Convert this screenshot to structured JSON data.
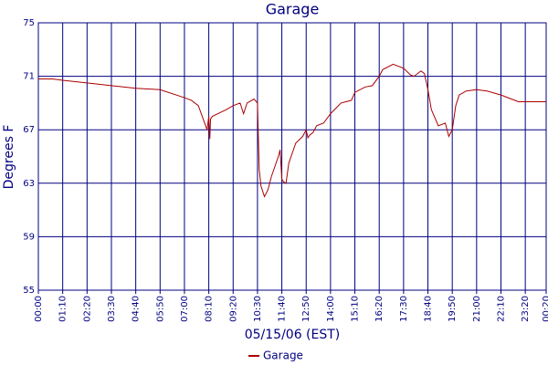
{
  "chart_data": {
    "type": "line",
    "title": "Garage",
    "xlabel": "05/15/06 (EST)",
    "ylabel": "Degrees F",
    "x": [
      0,
      40,
      70,
      140,
      210,
      280,
      350,
      420,
      440,
      460,
      485,
      490,
      493,
      495,
      500,
      540,
      560,
      580,
      590,
      600,
      620,
      630,
      635,
      640,
      650,
      660,
      670,
      690,
      695,
      700,
      705,
      712,
      720,
      740,
      760,
      770,
      775,
      780,
      790,
      800,
      820,
      840,
      870,
      900,
      910,
      940,
      960,
      980,
      990,
      1020,
      1050,
      1070,
      1080,
      1100,
      1110,
      1120,
      1130,
      1150,
      1170,
      1180,
      1190,
      1200,
      1210,
      1230,
      1260,
      1290,
      1330,
      1360,
      1380,
      1400,
      1440,
      1460
    ],
    "series": [
      {
        "name": "Garage",
        "color": "#aa0000",
        "values": [
          70.8,
          70.8,
          70.7,
          70.5,
          70.3,
          70.1,
          70.0,
          69.4,
          69.2,
          68.8,
          67.0,
          68.0,
          66.3,
          67.8,
          68.0,
          68.5,
          68.8,
          69.0,
          68.2,
          69.0,
          69.3,
          69.0,
          64.0,
          62.8,
          62.0,
          62.5,
          63.5,
          65.0,
          65.5,
          63.3,
          63.1,
          63.0,
          64.5,
          66.0,
          66.5,
          67.0,
          66.4,
          66.6,
          66.8,
          67.3,
          67.5,
          68.2,
          69.0,
          69.2,
          69.8,
          70.2,
          70.3,
          71.0,
          71.5,
          71.9,
          71.6,
          71.1,
          71.0,
          71.4,
          71.2,
          70.0,
          68.5,
          67.3,
          67.5,
          66.5,
          67.0,
          68.8,
          69.6,
          69.9,
          70.0,
          69.9,
          69.6,
          69.3,
          69.1,
          69.1,
          69.1,
          69.1
        ]
      }
    ],
    "xlim": [
      0,
      1460
    ],
    "xticks": [
      {
        "value": 0,
        "label": "00:00"
      },
      {
        "value": 70,
        "label": "01:10"
      },
      {
        "value": 140,
        "label": "02:20"
      },
      {
        "value": 210,
        "label": "03:30"
      },
      {
        "value": 280,
        "label": "04:40"
      },
      {
        "value": 350,
        "label": "05:50"
      },
      {
        "value": 420,
        "label": "07:00"
      },
      {
        "value": 490,
        "label": "08:10"
      },
      {
        "value": 560,
        "label": "09:20"
      },
      {
        "value": 630,
        "label": "10:30"
      },
      {
        "value": 700,
        "label": "11:40"
      },
      {
        "value": 770,
        "label": "12:50"
      },
      {
        "value": 840,
        "label": "14:00"
      },
      {
        "value": 910,
        "label": "15:10"
      },
      {
        "value": 980,
        "label": "16:20"
      },
      {
        "value": 1050,
        "label": "17:30"
      },
      {
        "value": 1120,
        "label": "18:40"
      },
      {
        "value": 1190,
        "label": "19:50"
      },
      {
        "value": 1260,
        "label": "21:00"
      },
      {
        "value": 1330,
        "label": "22:10"
      },
      {
        "value": 1400,
        "label": "23:20"
      },
      {
        "value": 1460,
        "label": "00:20"
      }
    ],
    "ylim": [
      55,
      75
    ],
    "yticks": [
      55,
      59,
      63,
      67,
      71,
      75
    ],
    "grid": true
  }
}
